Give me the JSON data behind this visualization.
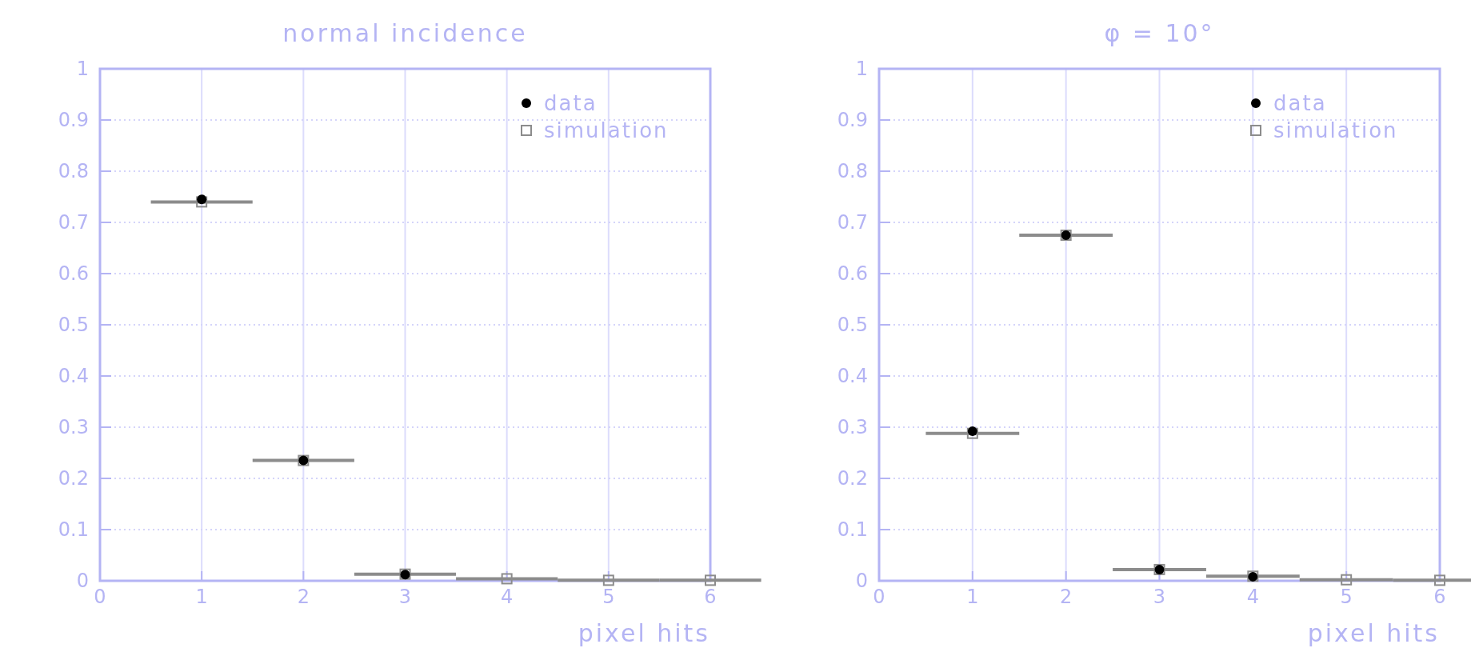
{
  "chart_data": [
    {
      "type": "scatter",
      "title": "normal incidence",
      "xlabel": "pixel hits",
      "xlim": [
        0,
        6
      ],
      "xticks": [
        0,
        1,
        2,
        3,
        4,
        5,
        6
      ],
      "ylim": [
        0,
        1
      ],
      "yticks": [
        0,
        0.1,
        0.2,
        0.3,
        0.4,
        0.5,
        0.6,
        0.7,
        0.8,
        0.9,
        1
      ],
      "grid": true,
      "legend": "top right",
      "series": [
        {
          "name": "data",
          "color": "#000000",
          "marker": "circle",
          "x": [
            1,
            2,
            3
          ],
          "values": [
            0.745,
            0.235,
            0.012
          ]
        },
        {
          "name": "simulation",
          "color": "#8c8c8c",
          "marker": "square",
          "x": [
            1,
            2,
            3,
            4,
            5,
            6
          ],
          "values": [
            0.74,
            0.235,
            0.013,
            0.004,
            0.001,
            0.001
          ],
          "xerrors": [
            0.5,
            0.5,
            0.5,
            0.5,
            0.5,
            0.5
          ]
        }
      ]
    },
    {
      "type": "scatter",
      "title": "φ = 10°",
      "xlabel": "pixel hits",
      "xlim": [
        0,
        6
      ],
      "xticks": [
        0,
        1,
        2,
        3,
        4,
        5,
        6
      ],
      "ylim": [
        0,
        1
      ],
      "yticks": [
        0,
        0.1,
        0.2,
        0.3,
        0.4,
        0.5,
        0.6,
        0.7,
        0.8,
        0.9,
        1
      ],
      "grid": true,
      "legend": "top right",
      "series": [
        {
          "name": "data",
          "color": "#000000",
          "marker": "circle",
          "x": [
            1,
            2,
            3,
            4
          ],
          "values": [
            0.292,
            0.675,
            0.022,
            0.008
          ]
        },
        {
          "name": "simulation",
          "color": "#8c8c8c",
          "marker": "square",
          "x": [
            1,
            2,
            3,
            4,
            5,
            6
          ],
          "values": [
            0.288,
            0.675,
            0.022,
            0.009,
            0.002,
            0.001
          ],
          "xerrors": [
            0.5,
            0.5,
            0.5,
            0.5,
            0.5,
            0.5
          ]
        }
      ]
    }
  ]
}
